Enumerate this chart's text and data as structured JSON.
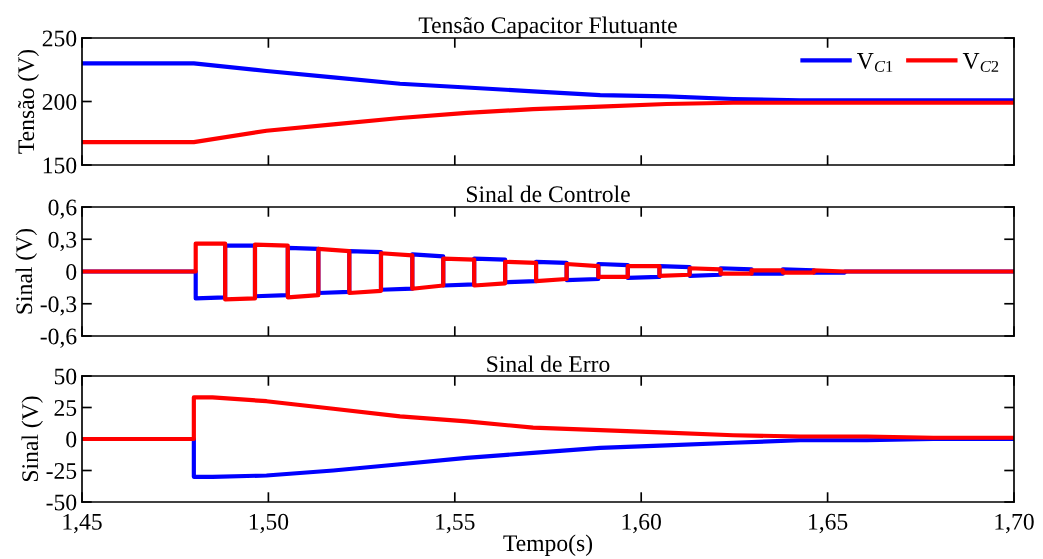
{
  "chart_data": [
    {
      "type": "line",
      "title": "Tensão Capacitor Flutuante",
      "ylabel": "Tensão (V)",
      "x": [
        1.45,
        1.48,
        1.4995,
        1.5174,
        1.5353,
        1.5532,
        1.571,
        1.589,
        1.6068,
        1.6247,
        1.6426,
        1.6605,
        1.6784,
        1.7
      ],
      "xlim": [
        1.45,
        1.7
      ],
      "xticks": [
        {
          "value": 1.45,
          "label": null
        },
        {
          "value": 1.5,
          "label": null
        },
        {
          "value": 1.55,
          "label": null
        },
        {
          "value": 1.6,
          "label": null
        },
        {
          "value": 1.65,
          "label": null
        },
        {
          "value": 1.7,
          "label": null
        }
      ],
      "ylim": [
        150,
        250
      ],
      "yticks": [
        150,
        200,
        250
      ],
      "tick_labels": "y",
      "legend": "top right",
      "series": [
        {
          "name": "V$_{C1}$",
          "color": "#0000ff",
          "values": [
            230,
            230,
            224,
            219,
            214,
            211,
            208,
            205,
            204,
            202,
            201,
            201,
            201,
            201
          ]
        },
        {
          "name": "V$_{C2}$",
          "color": "#ff0000",
          "values": [
            168,
            168,
            177,
            182,
            187,
            191,
            194,
            196,
            198,
            199,
            199,
            199,
            199,
            199
          ]
        }
      ]
    },
    {
      "type": "line",
      "title": "Sinal de Controle",
      "ylabel": "Sinal (V)",
      "xlim": [
        1.45,
        1.7
      ],
      "xticks": [
        {
          "value": 1.45,
          "label": null
        },
        {
          "value": 1.5,
          "label": null
        },
        {
          "value": 1.55,
          "label": null
        },
        {
          "value": 1.6,
          "label": null
        },
        {
          "value": 1.65,
          "label": null
        },
        {
          "value": 1.7,
          "label": null
        }
      ],
      "ylim": [
        -0.6,
        0.6
      ],
      "yticks": [
        {
          "value": 0.6,
          "label": "0,6"
        },
        {
          "value": 0.3,
          "label": "0,3"
        },
        0,
        {
          "value": -0.3,
          "label": "-0,3"
        },
        {
          "value": -0.6,
          "label": "-0,6"
        }
      ],
      "tick_labels": "y",
      "series": [
        {
          "color": "#0000ff",
          "x": [
            1.45,
            1.4805,
            1.4805,
            1.4884,
            1.4884,
            1.4964,
            1.4964,
            1.5052,
            1.5052,
            1.5134,
            1.5134,
            1.5217,
            1.5217,
            1.5302,
            1.5302,
            1.5386,
            1.5386,
            1.5469,
            1.5469,
            1.5552,
            1.5552,
            1.5635,
            1.5635,
            1.5718,
            1.5718,
            1.58,
            1.58,
            1.5885,
            1.5885,
            1.5964,
            1.5964,
            1.6049,
            1.6049,
            1.613,
            1.613,
            1.6213,
            1.6213,
            1.6296,
            1.6296,
            1.638,
            1.638,
            1.6463,
            1.6463,
            1.6546,
            1.6546,
            1.7
          ],
          "values": [
            0,
            0,
            -0.25,
            -0.24,
            0.24,
            0.24,
            -0.23,
            -0.22,
            0.22,
            0.21,
            -0.2,
            -0.19,
            0.19,
            0.18,
            -0.17,
            -0.16,
            0.16,
            0.14,
            -0.13,
            -0.12,
            0.12,
            0.11,
            -0.1,
            -0.09,
            0.09,
            0.08,
            -0.08,
            -0.07,
            0.07,
            0.06,
            -0.06,
            -0.05,
            0.05,
            0.04,
            -0.04,
            -0.03,
            0.03,
            0.02,
            -0.02,
            -0.02,
            0.02,
            0.01,
            -0.01,
            -0.01,
            0,
            0
          ]
        },
        {
          "color": "#ff0000",
          "x": [
            1.45,
            1.4805,
            1.4805,
            1.4884,
            1.4884,
            1.4964,
            1.4964,
            1.5052,
            1.5052,
            1.5134,
            1.5134,
            1.5217,
            1.5217,
            1.5302,
            1.5302,
            1.5386,
            1.5386,
            1.5469,
            1.5469,
            1.5552,
            1.5552,
            1.5635,
            1.5635,
            1.5718,
            1.5718,
            1.58,
            1.58,
            1.5885,
            1.5885,
            1.5964,
            1.5964,
            1.6049,
            1.6049,
            1.613,
            1.613,
            1.6213,
            1.6213,
            1.6296,
            1.6296,
            1.638,
            1.638,
            1.6463,
            1.6463,
            1.6546,
            1.6546,
            1.7
          ],
          "values": [
            0,
            0,
            0.26,
            0.26,
            -0.26,
            -0.25,
            0.25,
            0.24,
            -0.24,
            -0.22,
            0.21,
            0.19,
            -0.2,
            -0.18,
            0.17,
            0.15,
            -0.16,
            -0.13,
            0.12,
            0.11,
            -0.13,
            -0.11,
            0.09,
            0.08,
            -0.09,
            -0.07,
            0.07,
            0.05,
            -0.05,
            -0.05,
            0.05,
            0.05,
            -0.04,
            -0.03,
            0.03,
            0.02,
            -0.02,
            -0.02,
            0.01,
            0.01,
            -0.01,
            -0.01,
            0.01,
            0,
            0,
            0
          ]
        }
      ]
    },
    {
      "type": "line",
      "title": "Sinal de Erro",
      "xlabel": "Tempo(s)",
      "ylabel": "Sinal (V)",
      "x": [
        1.45,
        1.48,
        1.48,
        1.485,
        1.4995,
        1.5174,
        1.5353,
        1.5532,
        1.571,
        1.589,
        1.6068,
        1.6247,
        1.6426,
        1.6605,
        1.6784,
        1.7
      ],
      "xlim": [
        1.45,
        1.7
      ],
      "xticks": [
        {
          "value": 1.45,
          "label": "1,45"
        },
        {
          "value": 1.5,
          "label": "1,50"
        },
        {
          "value": 1.55,
          "label": "1,55"
        },
        {
          "value": 1.6,
          "label": "1,60"
        },
        {
          "value": 1.65,
          "label": "1,65"
        },
        {
          "value": 1.7,
          "label": "1,70"
        }
      ],
      "ylim": [
        -50,
        50
      ],
      "yticks": [
        50,
        25,
        0,
        -25,
        -50
      ],
      "series": [
        {
          "color": "#0000ff",
          "values": [
            0,
            0,
            -30,
            -30,
            -29,
            -25,
            -20,
            -15,
            -11,
            -7,
            -5,
            -3,
            -1,
            -1,
            0,
            0
          ]
        },
        {
          "color": "#ff0000",
          "values": [
            0,
            0,
            33,
            33,
            30,
            24,
            18,
            14,
            9,
            7,
            5,
            3,
            2,
            2,
            1,
            1
          ]
        }
      ]
    }
  ]
}
